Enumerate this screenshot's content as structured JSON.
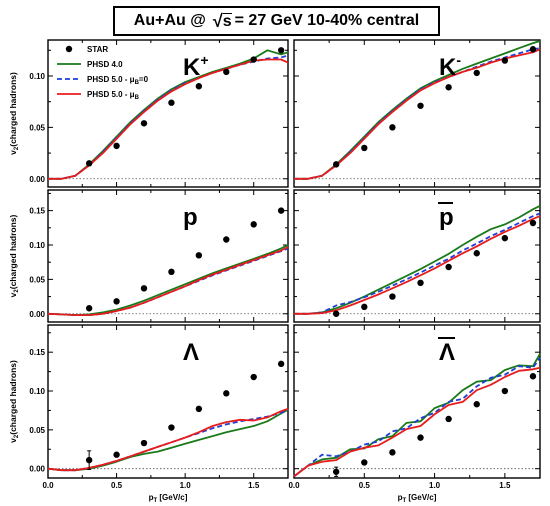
{
  "title": {
    "prefix": "Au+Au @ ",
    "sqrt_var": "s",
    "suffix": " = 27 GeV 10-40% central"
  },
  "legend": [
    {
      "label": "STAR",
      "style": "marker",
      "color": "#000000"
    },
    {
      "label": "PHSD 4.0",
      "style": "solid",
      "color": "#1a7a1a"
    },
    {
      "label": "PHSD 5.0 - μB=0",
      "style": "dashed",
      "color": "#1f3fd9"
    },
    {
      "label": "PHSD 5.0 - μB",
      "style": "solid",
      "color": "#e81c1c"
    }
  ],
  "axis": {
    "ylabel": "v2(charged hadrons)",
    "xlabel": "pT [GeV/c]",
    "xlim": [
      0.0,
      1.75
    ],
    "xticks": [
      "0.0",
      "0.5",
      "1.0",
      "1.5"
    ],
    "xtick_values": [
      0.0,
      0.5,
      1.0,
      1.5
    ]
  },
  "chart_data": [
    {
      "type": "line",
      "panel": "K+",
      "particle": "K",
      "superscript": "+",
      "overline": false,
      "ylim": [
        -0.008,
        0.135
      ],
      "yticks": [
        "0.00",
        "0.05",
        "0.10"
      ],
      "ytick_values": [
        0,
        0.05,
        0.1
      ],
      "x": [
        0.0,
        0.1,
        0.2,
        0.3,
        0.4,
        0.5,
        0.6,
        0.7,
        0.8,
        0.9,
        1.0,
        1.1,
        1.2,
        1.3,
        1.4,
        1.5,
        1.6,
        1.7,
        1.75
      ],
      "series": [
        {
          "name": "PHSD 4.0",
          "values": [
            0.0,
            0.0,
            0.003,
            0.014,
            0.027,
            0.041,
            0.055,
            0.067,
            0.078,
            0.087,
            0.094,
            0.099,
            0.104,
            0.108,
            0.112,
            0.117,
            0.125,
            0.121,
            0.123
          ]
        },
        {
          "name": "PHSD 5.0 - μB=0",
          "values": [
            0.0,
            0.0,
            0.003,
            0.013,
            0.026,
            0.04,
            0.054,
            0.066,
            0.077,
            0.086,
            0.093,
            0.098,
            0.103,
            0.107,
            0.111,
            0.114,
            0.117,
            0.118,
            0.12
          ]
        },
        {
          "name": "PHSD 5.0 - μB",
          "values": [
            0.0,
            0.0,
            0.003,
            0.013,
            0.025,
            0.039,
            0.053,
            0.065,
            0.076,
            0.085,
            0.092,
            0.098,
            0.103,
            0.107,
            0.111,
            0.115,
            0.116,
            0.116,
            0.113
          ]
        }
      ],
      "star": {
        "x": [
          0.3,
          0.5,
          0.7,
          0.9,
          1.1,
          1.3,
          1.5,
          1.7
        ],
        "y": [
          0.015,
          0.032,
          0.054,
          0.074,
          0.09,
          0.104,
          0.116,
          0.125
        ],
        "err": [
          0,
          0,
          0,
          0,
          0,
          0,
          0,
          0
        ]
      }
    },
    {
      "type": "line",
      "panel": "K-",
      "particle": "K",
      "superscript": "-",
      "overline": false,
      "ylim": [
        -0.008,
        0.135
      ],
      "yticks": [
        "0.00",
        "0.05",
        "0.10"
      ],
      "ytick_values": [
        0,
        0.05,
        0.1
      ],
      "x": [
        0.0,
        0.1,
        0.2,
        0.3,
        0.4,
        0.5,
        0.6,
        0.7,
        0.8,
        0.9,
        1.0,
        1.1,
        1.2,
        1.3,
        1.4,
        1.5,
        1.6,
        1.7,
        1.75
      ],
      "series": [
        {
          "name": "PHSD 4.0",
          "values": [
            0.0,
            0.0,
            0.003,
            0.014,
            0.027,
            0.041,
            0.055,
            0.067,
            0.078,
            0.088,
            0.095,
            0.101,
            0.107,
            0.112,
            0.117,
            0.122,
            0.127,
            0.132,
            0.134
          ]
        },
        {
          "name": "PHSD 5.0 - μB=0",
          "values": [
            0.0,
            0.0,
            0.003,
            0.013,
            0.026,
            0.04,
            0.054,
            0.066,
            0.077,
            0.087,
            0.094,
            0.099,
            0.104,
            0.109,
            0.114,
            0.118,
            0.122,
            0.126,
            0.127
          ]
        },
        {
          "name": "PHSD 5.0 - μB",
          "values": [
            0.0,
            0.0,
            0.003,
            0.013,
            0.025,
            0.039,
            0.053,
            0.065,
            0.076,
            0.086,
            0.093,
            0.099,
            0.104,
            0.108,
            0.113,
            0.117,
            0.12,
            0.123,
            0.126
          ]
        }
      ],
      "star": {
        "x": [
          0.3,
          0.5,
          0.7,
          0.9,
          1.1,
          1.3,
          1.5,
          1.7
        ],
        "y": [
          0.014,
          0.03,
          0.05,
          0.071,
          0.089,
          0.103,
          0.115,
          0.126
        ],
        "err": [
          0,
          0,
          0,
          0,
          0,
          0,
          0,
          0
        ]
      }
    },
    {
      "type": "line",
      "panel": "p",
      "particle": "p",
      "superscript": "",
      "overline": false,
      "ylim": [
        -0.012,
        0.18
      ],
      "yticks": [
        "0.00",
        "0.05",
        "0.10",
        "0.15"
      ],
      "ytick_values": [
        0,
        0.05,
        0.1,
        0.15
      ],
      "x": [
        0.0,
        0.1,
        0.2,
        0.3,
        0.4,
        0.5,
        0.6,
        0.7,
        0.8,
        0.9,
        1.0,
        1.1,
        1.2,
        1.3,
        1.4,
        1.5,
        1.6,
        1.7,
        1.75
      ],
      "series": [
        {
          "name": "PHSD 4.0",
          "values": [
            0.0,
            -0.001,
            -0.002,
            -0.001,
            0.002,
            0.006,
            0.012,
            0.019,
            0.027,
            0.035,
            0.043,
            0.051,
            0.059,
            0.066,
            0.073,
            0.08,
            0.087,
            0.095,
            0.1
          ]
        },
        {
          "name": "PHSD 5.0 - μB=0",
          "values": [
            0.0,
            -0.001,
            -0.002,
            -0.002,
            0.0,
            0.004,
            0.009,
            0.016,
            0.024,
            0.032,
            0.04,
            0.048,
            0.056,
            0.063,
            0.07,
            0.077,
            0.084,
            0.091,
            0.095
          ]
        },
        {
          "name": "PHSD 5.0 - μB",
          "values": [
            0.0,
            -0.001,
            -0.002,
            -0.002,
            0.0,
            0.004,
            0.009,
            0.016,
            0.024,
            0.032,
            0.04,
            0.049,
            0.057,
            0.064,
            0.071,
            0.078,
            0.085,
            0.092,
            0.097
          ]
        }
      ],
      "star": {
        "x": [
          0.3,
          0.5,
          0.7,
          0.9,
          1.1,
          1.3,
          1.5,
          1.7
        ],
        "y": [
          0.008,
          0.018,
          0.037,
          0.061,
          0.085,
          0.108,
          0.13,
          0.15
        ],
        "err": [
          0,
          0,
          0,
          0,
          0,
          0,
          0,
          0
        ]
      }
    },
    {
      "type": "line",
      "panel": "p-bar",
      "particle": "p",
      "superscript": "",
      "overline": true,
      "ylim": [
        -0.012,
        0.18
      ],
      "yticks": [
        "0.00",
        "0.05",
        "0.10",
        "0.15"
      ],
      "ytick_values": [
        0,
        0.05,
        0.1,
        0.15
      ],
      "x": [
        0.0,
        0.1,
        0.2,
        0.3,
        0.4,
        0.5,
        0.6,
        0.7,
        0.8,
        0.9,
        1.0,
        1.1,
        1.2,
        1.3,
        1.4,
        1.5,
        1.6,
        1.7,
        1.75
      ],
      "series": [
        {
          "name": "PHSD 4.0",
          "values": [
            0.0,
            0.0,
            0.002,
            0.008,
            0.016,
            0.025,
            0.035,
            0.045,
            0.055,
            0.065,
            0.076,
            0.087,
            0.1,
            0.112,
            0.123,
            0.13,
            0.14,
            0.152,
            0.157
          ]
        },
        {
          "name": "PHSD 5.0 - μB=0",
          "values": [
            0.0,
            0.0,
            0.002,
            0.012,
            0.017,
            0.024,
            0.032,
            0.041,
            0.05,
            0.06,
            0.07,
            0.08,
            0.092,
            0.102,
            0.113,
            0.122,
            0.132,
            0.142,
            0.146
          ]
        },
        {
          "name": "PHSD 5.0 - μB",
          "values": [
            0.0,
            0.0,
            0.001,
            0.005,
            0.012,
            0.02,
            0.028,
            0.037,
            0.046,
            0.056,
            0.066,
            0.077,
            0.088,
            0.098,
            0.109,
            0.119,
            0.128,
            0.138,
            0.142
          ]
        }
      ],
      "star": {
        "x": [
          0.3,
          0.5,
          0.7,
          0.9,
          1.1,
          1.3,
          1.5,
          1.7
        ],
        "y": [
          0.0,
          0.01,
          0.025,
          0.045,
          0.068,
          0.088,
          0.11,
          0.132
        ],
        "err": [
          0,
          0,
          0,
          0,
          0,
          0,
          0,
          0
        ]
      }
    },
    {
      "type": "line",
      "panel": "Lambda",
      "particle": "Λ",
      "superscript": "",
      "overline": false,
      "ylim": [
        -0.012,
        0.185
      ],
      "yticks": [
        "0.00",
        "0.05",
        "0.10",
        "0.15"
      ],
      "ytick_values": [
        0,
        0.05,
        0.1,
        0.15
      ],
      "x": [
        0.0,
        0.1,
        0.2,
        0.3,
        0.4,
        0.5,
        0.6,
        0.7,
        0.8,
        0.9,
        1.0,
        1.1,
        1.2,
        1.3,
        1.4,
        1.5,
        1.6,
        1.7,
        1.75
      ],
      "series": [
        {
          "name": "PHSD 4.0",
          "values": [
            0.0,
            -0.002,
            -0.002,
            0.0,
            0.004,
            0.009,
            0.015,
            0.019,
            0.022,
            0.027,
            0.032,
            0.037,
            0.042,
            0.047,
            0.051,
            0.055,
            0.061,
            0.071,
            0.076
          ]
        },
        {
          "name": "PHSD 5.0 - μB=0",
          "values": [
            0.0,
            -0.002,
            -0.002,
            0.001,
            0.005,
            0.01,
            0.016,
            0.022,
            0.028,
            0.034,
            0.04,
            0.046,
            0.052,
            0.057,
            0.061,
            0.064,
            0.067,
            0.072,
            0.076
          ]
        },
        {
          "name": "PHSD 5.0 - μB",
          "values": [
            0.0,
            -0.002,
            -0.002,
            0.001,
            0.005,
            0.01,
            0.016,
            0.022,
            0.028,
            0.034,
            0.04,
            0.047,
            0.055,
            0.06,
            0.063,
            0.062,
            0.066,
            0.074,
            0.077
          ]
        }
      ],
      "star": {
        "x": [
          0.3,
          0.5,
          0.7,
          0.9,
          1.1,
          1.3,
          1.5,
          1.7
        ],
        "y": [
          0.011,
          0.018,
          0.033,
          0.053,
          0.077,
          0.097,
          0.118,
          0.135
        ],
        "err": [
          0.012,
          0,
          0,
          0,
          0,
          0,
          0,
          0
        ]
      }
    },
    {
      "type": "line",
      "panel": "Lambda-bar",
      "particle": "Λ",
      "superscript": "",
      "overline": true,
      "ylim": [
        -0.012,
        0.185
      ],
      "yticks": [
        "0.00",
        "0.05",
        "0.10",
        "0.15"
      ],
      "ytick_values": [
        0,
        0.05,
        0.1,
        0.15
      ],
      "x": [
        0.0,
        0.1,
        0.2,
        0.3,
        0.4,
        0.5,
        0.6,
        0.7,
        0.8,
        0.9,
        1.0,
        1.1,
        1.2,
        1.3,
        1.4,
        1.5,
        1.6,
        1.7,
        1.75
      ],
      "series": [
        {
          "name": "PHSD 4.0",
          "values": [
            -0.01,
            0.004,
            0.012,
            0.014,
            0.025,
            0.026,
            0.038,
            0.042,
            0.059,
            0.061,
            0.078,
            0.085,
            0.101,
            0.112,
            0.114,
            0.127,
            0.133,
            0.132,
            0.148
          ]
        },
        {
          "name": "PHSD 5.0 - μB=0",
          "values": [
            -0.01,
            0.004,
            0.018,
            0.016,
            0.022,
            0.031,
            0.035,
            0.048,
            0.052,
            0.065,
            0.072,
            0.086,
            0.09,
            0.106,
            0.117,
            0.121,
            0.132,
            0.13,
            0.143
          ]
        },
        {
          "name": "PHSD 5.0 - μB",
          "values": [
            -0.01,
            0.004,
            0.009,
            0.011,
            0.022,
            0.027,
            0.03,
            0.04,
            0.051,
            0.055,
            0.07,
            0.082,
            0.086,
            0.101,
            0.108,
            0.118,
            0.126,
            0.128,
            0.13
          ]
        }
      ],
      "star": {
        "x": [
          0.3,
          0.5,
          0.7,
          0.9,
          1.1,
          1.3,
          1.5,
          1.7
        ],
        "y": [
          -0.004,
          0.008,
          0.021,
          0.04,
          0.064,
          0.083,
          0.1,
          0.119
        ],
        "err": [
          0.006,
          0,
          0,
          0,
          0,
          0,
          0,
          0
        ]
      }
    }
  ]
}
